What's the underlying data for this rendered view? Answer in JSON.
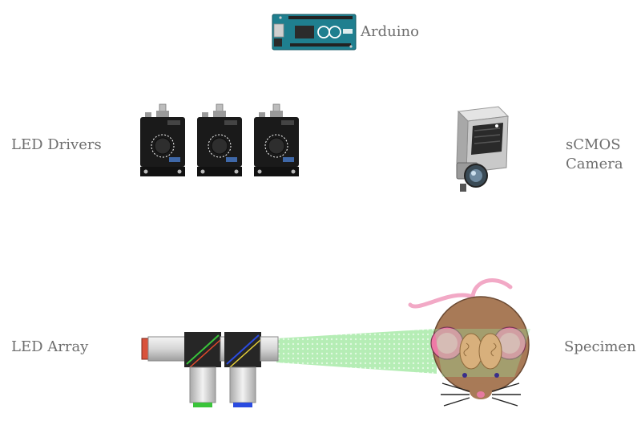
{
  "labels": {
    "arduino": "Arduino",
    "led_drivers": "LED Drivers",
    "camera_line1": "sCMOS",
    "camera_line2": "Camera",
    "led_array": "LED Array",
    "specimen": "Specimen"
  },
  "colors": {
    "label_text": "#6e6e6e",
    "arduino_board": "#1f7f8f",
    "driver_body": "#1a1a1a",
    "camera_body": "#c9c9c9",
    "beam": "#9be39b",
    "mouse_fur": "#a87a57",
    "mouse_ear": "#ee7aa6",
    "tail": "#f2a9c6",
    "brain": "#d8b07c"
  },
  "icons": {
    "arduino": "arduino-board-icon",
    "driver": "led-driver-icon",
    "camera": "scmos-camera-icon",
    "led_array": "led-array-icon",
    "mouse": "mouse-specimen-icon"
  }
}
